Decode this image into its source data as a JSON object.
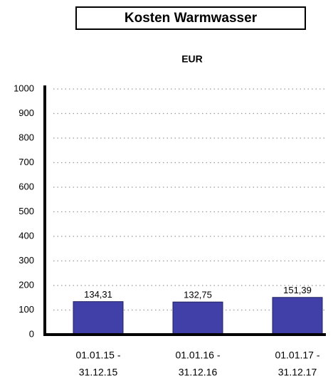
{
  "chart_data": {
    "type": "bar",
    "title": "Kosten Warmwasser",
    "y_label": "EUR",
    "categories": [
      [
        "01.01.15 -",
        "31.12.15"
      ],
      [
        "01.01.16 -",
        "31.12.16"
      ],
      [
        "01.01.17 -",
        "31.12.17"
      ]
    ],
    "values": [
      134.31,
      132.75,
      151.39
    ],
    "value_labels": [
      "134,31",
      "132,75",
      "151,39"
    ],
    "color": "#4040a8",
    "ylim": [
      0,
      1000
    ],
    "yticks": [
      0,
      100,
      200,
      300,
      400,
      500,
      600,
      700,
      800,
      900,
      1000
    ],
    "grid": true
  }
}
